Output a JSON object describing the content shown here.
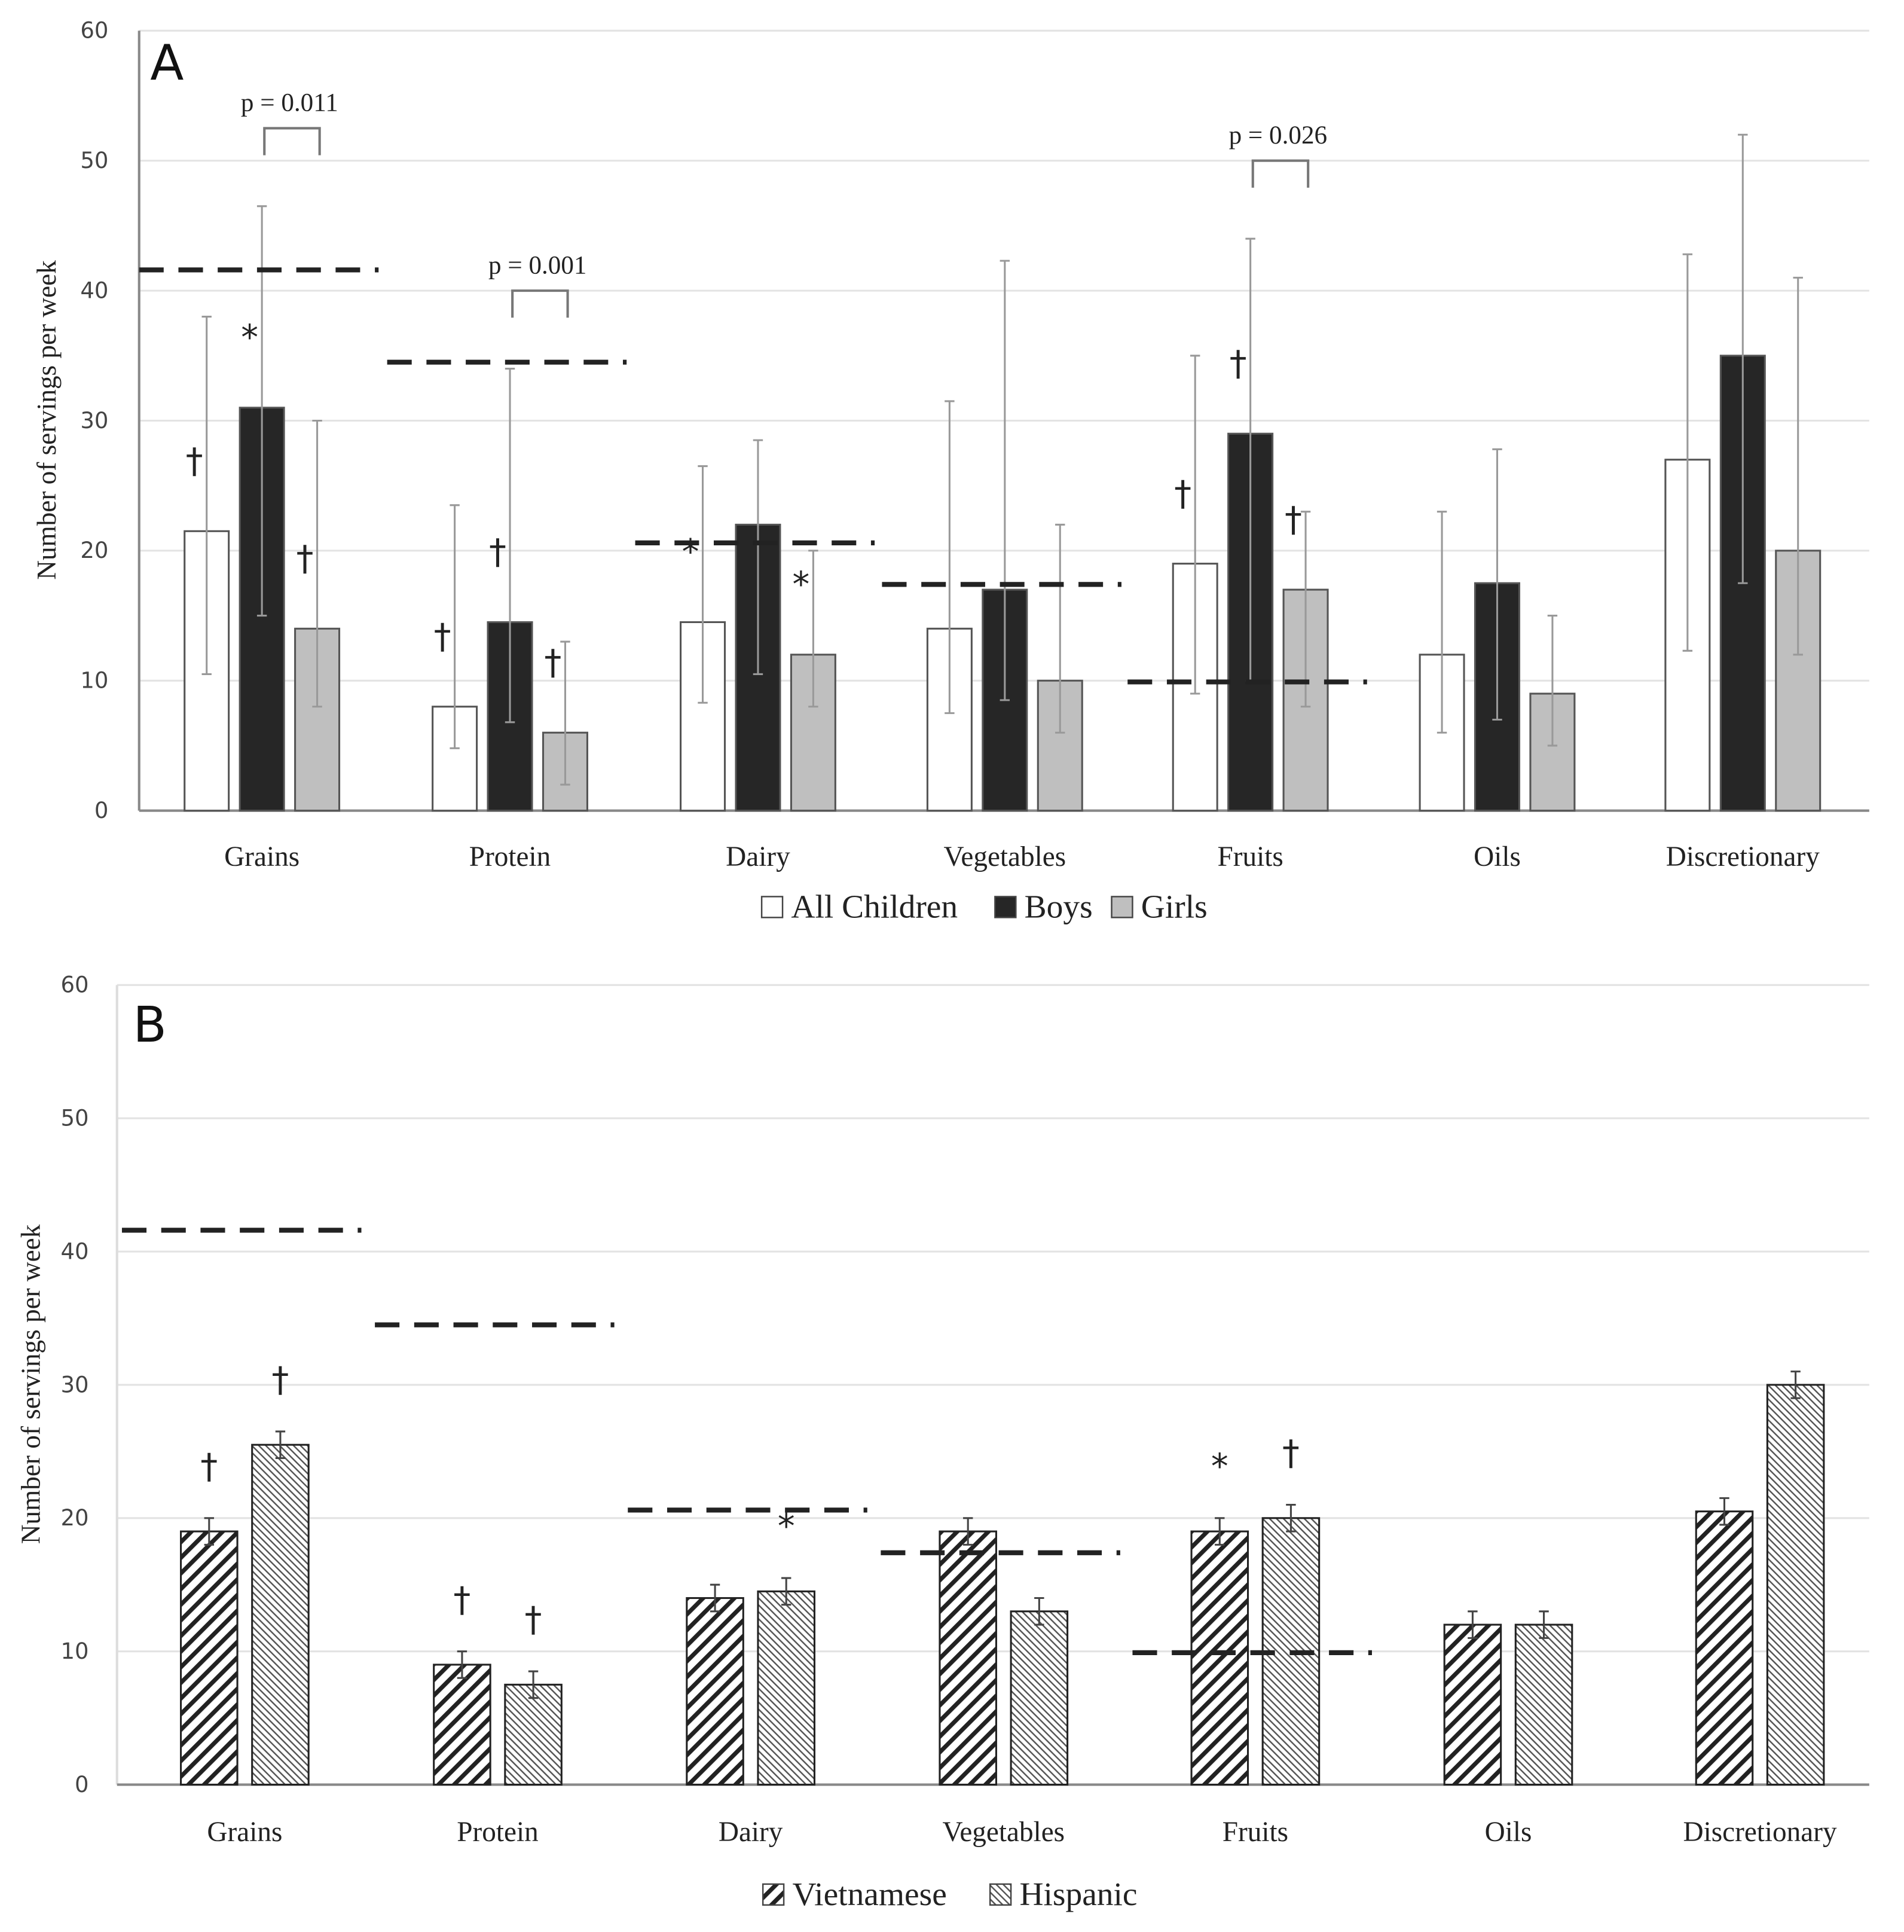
{
  "chart_data": [
    {
      "type": "bar",
      "panel": "A",
      "ylabel": "Number of servings per week",
      "ylim": [
        0,
        60
      ],
      "yticks": [
        0,
        10,
        20,
        30,
        40,
        50,
        60
      ],
      "grid": true,
      "legend": "bottom",
      "categories": [
        "Grains",
        "Protein",
        "Dairy",
        "Vegetables",
        "Fruits",
        "Oils",
        "Discretionary"
      ],
      "series": [
        {
          "name": "All Children",
          "color": "#ffffff",
          "values": [
            21.5,
            8,
            14.5,
            14,
            19,
            12,
            27
          ],
          "err_low": [
            10.5,
            4.8,
            8.3,
            7.5,
            9,
            6,
            12.3
          ],
          "err_high": [
            38,
            23.5,
            26.5,
            31.5,
            35,
            23,
            42.8
          ]
        },
        {
          "name": "Boys",
          "color": "#262626",
          "values": [
            31,
            14.5,
            22,
            17,
            29,
            17.5,
            35
          ],
          "err_low": [
            15,
            6.8,
            10.5,
            8.5,
            10,
            7,
            17.5
          ],
          "err_high": [
            46.5,
            34,
            28.5,
            42.3,
            44,
            27.8,
            52
          ]
        },
        {
          "name": "Girls",
          "color": "#bfbfbf",
          "values": [
            14,
            6,
            12,
            10,
            17,
            9,
            20
          ],
          "err_low": [
            8,
            2,
            8,
            6,
            8,
            5,
            12
          ],
          "err_high": [
            30,
            13,
            20,
            22,
            23,
            15,
            41
          ]
        }
      ],
      "reference_lines": [
        41.6,
        34.5,
        20.6,
        17.4,
        9.9,
        null,
        null
      ],
      "annotations": [
        {
          "cat": 0,
          "series": 0,
          "symbol": "†"
        },
        {
          "cat": 0,
          "series": 1,
          "symbol": "*"
        },
        {
          "cat": 0,
          "series": 2,
          "symbol": "†"
        },
        {
          "cat": 1,
          "series": 0,
          "symbol": "†"
        },
        {
          "cat": 1,
          "series": 1,
          "symbol": "†"
        },
        {
          "cat": 1,
          "series": 2,
          "symbol": "†"
        },
        {
          "cat": 2,
          "series": 0,
          "symbol": "*"
        },
        {
          "cat": 2,
          "series": 2,
          "symbol": "*"
        },
        {
          "cat": 4,
          "series": 0,
          "symbol": "†"
        },
        {
          "cat": 4,
          "series": 1,
          "symbol": "†"
        },
        {
          "cat": 4,
          "series": 2,
          "symbol": "†"
        }
      ],
      "comparisons": [
        {
          "cat": 0,
          "between": [
            1,
            2
          ],
          "label": "p = 0.011"
        },
        {
          "cat": 1,
          "between": [
            1,
            2
          ],
          "label": "p = 0.001"
        },
        {
          "cat": 4,
          "between": [
            1,
            2
          ],
          "label": "p = 0.026"
        }
      ]
    },
    {
      "type": "bar",
      "panel": "B",
      "ylabel": "Number of servings per week",
      "ylim": [
        0,
        60
      ],
      "yticks": [
        0,
        10,
        20,
        30,
        40,
        50,
        60
      ],
      "grid": true,
      "legend": "bottom",
      "categories": [
        "Grains",
        "Protein",
        "Dairy",
        "Vegetables",
        "Fruits",
        "Oils",
        "Discretionary"
      ],
      "series": [
        {
          "name": "Vietnamese",
          "pattern": "diagonal-hatch",
          "values": [
            19,
            9,
            14,
            19,
            19,
            12,
            20.5
          ],
          "err_low": [
            18,
            8,
            13,
            18,
            18,
            11,
            19.5
          ],
          "err_high": [
            20,
            10,
            15,
            20,
            20,
            13,
            21.5
          ]
        },
        {
          "name": "Hispanic",
          "pattern": "fine-hatch",
          "values": [
            25.5,
            7.5,
            14.5,
            13,
            20,
            12,
            30
          ],
          "err_low": [
            24.5,
            6.5,
            13.5,
            12,
            19,
            11,
            29
          ],
          "err_high": [
            26.5,
            8.5,
            15.5,
            14,
            21,
            13,
            31
          ]
        }
      ],
      "reference_lines": [
        41.6,
        34.5,
        20.6,
        17.4,
        9.9,
        null,
        null
      ],
      "annotations": [
        {
          "cat": 0,
          "series": 0,
          "symbol": "†"
        },
        {
          "cat": 0,
          "series": 1,
          "symbol": "†"
        },
        {
          "cat": 1,
          "series": 0,
          "symbol": "†"
        },
        {
          "cat": 1,
          "series": 1,
          "symbol": "†"
        },
        {
          "cat": 2,
          "series": 1,
          "symbol": "*"
        },
        {
          "cat": 4,
          "series": 0,
          "symbol": "*"
        },
        {
          "cat": 4,
          "series": 1,
          "symbol": "†"
        }
      ],
      "comparisons": []
    }
  ]
}
